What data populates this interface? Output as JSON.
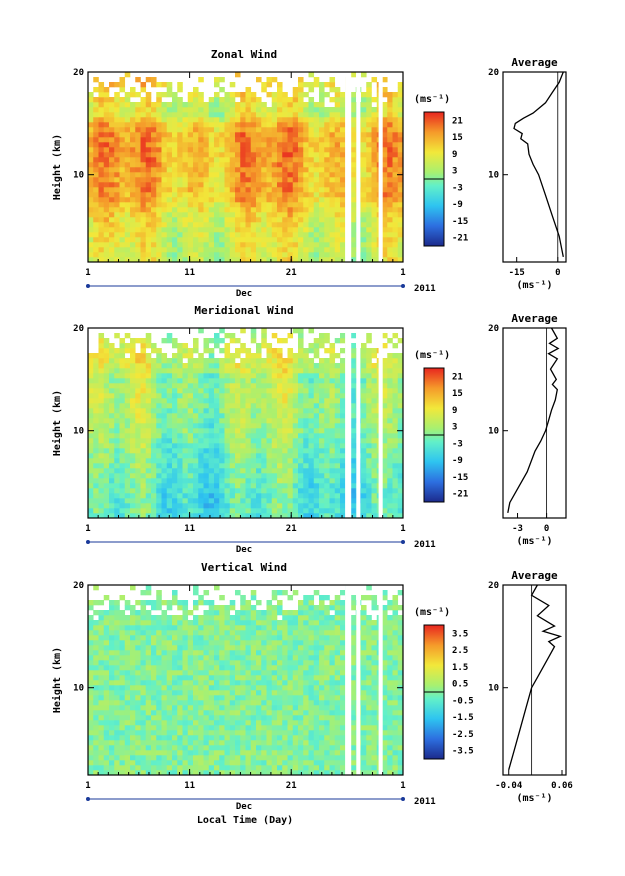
{
  "figure": {
    "xlabel": "Local Time (Day)"
  },
  "panels": [
    {
      "title": "Zonal Wind",
      "ylabel": "Height (km)",
      "month_label": "Dec",
      "year_label": "2011",
      "y_ticks": [
        "20",
        "10"
      ],
      "x_ticks": [
        "1",
        "11",
        "21",
        "1"
      ],
      "unit": "(ms⁻¹)",
      "colorbar_ticks": [
        "21",
        "15",
        "9",
        "3",
        "-3",
        "-9",
        "-15",
        "-21"
      ],
      "avg_title": "Average",
      "avg_y_ticks": [
        "20",
        "10"
      ],
      "avg_x_ticks": [
        "-15",
        "0"
      ],
      "avg_unit": "(ms⁻¹)"
    },
    {
      "title": "Meridional Wind",
      "ylabel": "Height (km)",
      "month_label": "Dec",
      "year_label": "2011",
      "y_ticks": [
        "20",
        "10"
      ],
      "x_ticks": [
        "1",
        "11",
        "21",
        "1"
      ],
      "unit": "(ms⁻¹)",
      "colorbar_ticks": [
        "21",
        "15",
        "9",
        "3",
        "-3",
        "-9",
        "-15",
        "-21"
      ],
      "avg_title": "Average",
      "avg_y_ticks": [
        "20",
        "10"
      ],
      "avg_x_ticks": [
        "-3",
        "0"
      ],
      "avg_unit": "(ms⁻¹)"
    },
    {
      "title": "Vertical Wind",
      "ylabel": "Height (km)",
      "month_label": "Dec",
      "year_label": "2011",
      "y_ticks": [
        "20",
        "10"
      ],
      "x_ticks": [
        "1",
        "11",
        "21",
        "1"
      ],
      "unit": "(ms⁻¹)",
      "colorbar_ticks": [
        "3.5",
        "2.5",
        "1.5",
        "0.5",
        "-0.5",
        "-1.5",
        "-2.5",
        "-3.5"
      ],
      "avg_title": "Average",
      "avg_y_ticks": [
        "20",
        "10"
      ],
      "avg_x_ticks": [
        "-0.04",
        "0.06"
      ],
      "avg_unit": "(ms⁻¹)"
    }
  ],
  "chart_data": [
    {
      "type": "heatmap",
      "title": "Zonal Wind",
      "xlabel": "Dec",
      "ylabel": "Height (km)",
      "xlim": [
        1,
        32
      ],
      "ylim": [
        1.5,
        20
      ],
      "clim": [
        -24,
        24
      ],
      "colorbar_ticks": [
        21,
        15,
        9,
        3,
        -3,
        -9,
        -15,
        -21
      ],
      "colorscale": "jet",
      "profile": [
        [
          2,
          6
        ],
        [
          4,
          7
        ],
        [
          6,
          9
        ],
        [
          8,
          14
        ],
        [
          10,
          14
        ],
        [
          12,
          15
        ],
        [
          14,
          15
        ],
        [
          15,
          12
        ],
        [
          16,
          6
        ],
        [
          18,
          9
        ],
        [
          20,
          12
        ]
      ]
    },
    {
      "type": "line",
      "title": "Average",
      "xlabel": "(ms⁻¹)",
      "ylabel": "",
      "xlim": [
        -20,
        3
      ],
      "ylim": [
        1.5,
        20
      ],
      "series": [
        {
          "x": [
            2.0,
            0.5,
            -2.0,
            -4.5,
            -7.0,
            -9.0,
            -10.5,
            -11.0,
            -13.5,
            -13.0,
            -16.0,
            -15.5,
            -12.5,
            -9.0,
            -4.5,
            -2.0,
            0.5,
            2.0
          ],
          "y": [
            2,
            4,
            6,
            8,
            10,
            11,
            12,
            13,
            13.5,
            14,
            14.5,
            15,
            15.5,
            16,
            17,
            18,
            19,
            20
          ]
        }
      ]
    },
    {
      "type": "heatmap",
      "title": "Meridional Wind",
      "xlabel": "Dec",
      "ylabel": "Height (km)",
      "xlim": [
        1,
        32
      ],
      "ylim": [
        1.5,
        20
      ],
      "clim": [
        -24,
        24
      ],
      "colorbar_ticks": [
        21,
        15,
        9,
        3,
        -3,
        -9,
        -15,
        -21
      ],
      "colorscale": "jet",
      "profile": [
        [
          2,
          -4
        ],
        [
          4,
          -4
        ],
        [
          6,
          -2
        ],
        [
          8,
          -1
        ],
        [
          10,
          1
        ],
        [
          12,
          2
        ],
        [
          14,
          3
        ],
        [
          15,
          1
        ],
        [
          16,
          5
        ],
        [
          18,
          6
        ],
        [
          20,
          2
        ]
      ]
    },
    {
      "type": "line",
      "title": "Average",
      "xlabel": "(ms⁻¹)",
      "ylabel": "",
      "xlim": [
        -4.5,
        2
      ],
      "ylim": [
        1.5,
        20
      ],
      "series": [
        {
          "x": [
            -4.0,
            -3.8,
            -3.2,
            -2.0,
            -1.2,
            -0.6,
            -0.1,
            0.2,
            0.5,
            0.9,
            1.1,
            0.6,
            1.0,
            0.4,
            1.1,
            0.2,
            1.2,
            0.3,
            1.1,
            0.5
          ],
          "y": [
            2,
            3,
            4,
            6,
            8,
            9,
            10,
            11,
            12,
            13,
            14,
            14.5,
            15,
            16,
            17,
            17.5,
            18,
            18.5,
            19,
            20
          ]
        }
      ]
    },
    {
      "type": "heatmap",
      "title": "Vertical Wind",
      "xlabel": "Dec",
      "ylabel": "Height (km)",
      "xlim": [
        1,
        32
      ],
      "ylim": [
        1.5,
        20
      ],
      "clim": [
        -4,
        4
      ],
      "colorbar_ticks": [
        3.5,
        2.5,
        1.5,
        0.5,
        -0.5,
        -1.5,
        -2.5,
        -3.5
      ],
      "colorscale": "jet",
      "profile": [
        [
          2,
          0
        ],
        [
          20,
          0
        ]
      ]
    },
    {
      "type": "line",
      "title": "Average",
      "xlabel": "(ms⁻¹)",
      "ylabel": "",
      "xlim": [
        -0.05,
        0.06
      ],
      "ylim": [
        1.5,
        20
      ],
      "series": [
        {
          "x": [
            -0.04,
            -0.03,
            -0.02,
            -0.01,
            0.0,
            0.01,
            0.02,
            0.03,
            0.04,
            0.03,
            0.05,
            0.02,
            0.04,
            0.01,
            0.03,
            0.0,
            0.01
          ],
          "y": [
            2,
            4,
            6,
            8,
            10,
            11,
            12,
            13,
            14,
            14.5,
            15,
            15.5,
            16,
            17,
            18,
            19,
            20
          ]
        }
      ]
    }
  ]
}
